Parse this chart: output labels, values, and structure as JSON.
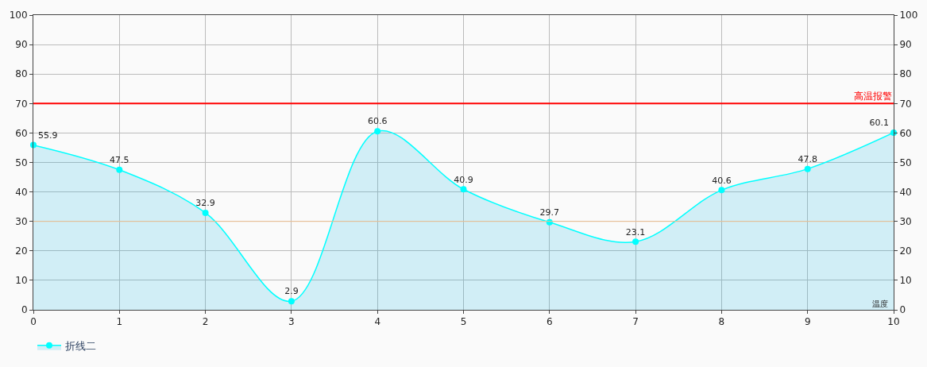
{
  "chart_data": {
    "type": "area",
    "x": [
      0,
      1,
      2,
      3,
      4,
      5,
      6,
      7,
      8,
      9,
      10
    ],
    "series": [
      {
        "name": "折线二",
        "color": "#00ffff",
        "values": [
          55.9,
          47.5,
          32.9,
          2.9,
          60.6,
          40.9,
          29.7,
          23.1,
          40.6,
          47.8,
          60.1
        ]
      }
    ],
    "xlim": [
      0,
      10
    ],
    "xticks": [
      0,
      1,
      2,
      3,
      4,
      5,
      6,
      7,
      8,
      9,
      10
    ],
    "ylim": [
      0,
      100
    ],
    "yticks": [
      0,
      10,
      20,
      30,
      40,
      50,
      60,
      70,
      80,
      90,
      100
    ],
    "y2lim": [
      0,
      100
    ],
    "y2ticks": [
      0,
      10,
      20,
      30,
      40,
      50,
      60,
      70,
      80,
      90,
      100
    ],
    "ref_lines": [
      {
        "axis": "y",
        "value": 70,
        "label": "高温报警",
        "color": "#ff0000"
      },
      {
        "axis": "y",
        "value": 30,
        "color": "#f0c090"
      }
    ],
    "annotations": [
      "温度"
    ],
    "data_labels": true,
    "grid": true,
    "legend": "bottom left",
    "marker": "circle",
    "line_style": "solid"
  }
}
